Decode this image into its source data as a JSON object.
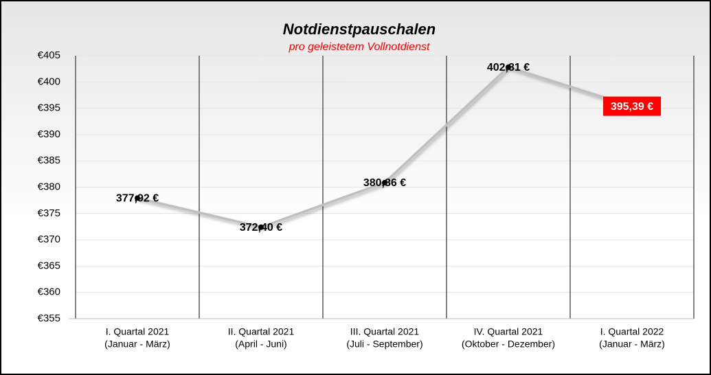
{
  "chart_data": {
    "type": "line",
    "title": "Notdienstpauschalen",
    "subtitle": "pro geleistetem Vollnotdienst",
    "categories": [
      "I. Quartal 2021",
      "II. Quartal 2021",
      "III. Quartal 2021",
      "IV. Quartal 2021",
      "I. Quartal 2022"
    ],
    "category_subtitles": [
      "(Januar - März)",
      "(April - Juni)",
      "(Juli - September)",
      "(Oktober - Dezember)",
      "(Januar - März)"
    ],
    "values": [
      377.92,
      372.4,
      380.86,
      402.81,
      395.39
    ],
    "value_labels": [
      "377,92 €",
      "372,40 €",
      "380,86 €",
      "402,81 €",
      "395,39 €"
    ],
    "highlight_index": 4,
    "color": "#bfbfbf",
    "marker_color": "#000000",
    "highlight_color": "#ff0000",
    "ylim": [
      355,
      405
    ],
    "yticks": [
      {
        "value": 355,
        "label": "€355"
      },
      {
        "value": 360,
        "label": "€360"
      },
      {
        "value": 365,
        "label": "€365"
      },
      {
        "value": 370,
        "label": "€370"
      },
      {
        "value": 375,
        "label": "€375"
      },
      {
        "value": 380,
        "label": "€380"
      },
      {
        "value": 385,
        "label": "€385"
      },
      {
        "value": 390,
        "label": "€390"
      },
      {
        "value": 395,
        "label": "€395"
      },
      {
        "value": 400,
        "label": "€400"
      },
      {
        "value": 405,
        "label": "€405"
      }
    ],
    "grid": true
  }
}
